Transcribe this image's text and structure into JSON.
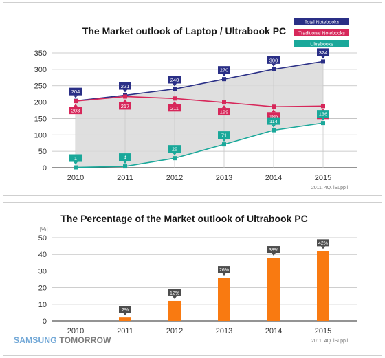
{
  "brand": {
    "samsung": "SAMSUNG",
    "tomorrow": "TOMORROW"
  },
  "colors": {
    "total": "#2a2f86",
    "traditional": "#d7275a",
    "ultrabook": "#1aa89a",
    "bar": "#f97a11",
    "area": "#d9d9d9",
    "label_dark": "#4d4d4d"
  },
  "chart_data": [
    {
      "type": "line",
      "title": "The Market outlook of Laptop / Ultrabook PC",
      "source": "2011. 4Q. iSuppli",
      "x": [
        "2010",
        "2011",
        "2012",
        "2013",
        "2014",
        "2015"
      ],
      "ylim": [
        0,
        350
      ],
      "yticks": [
        "0",
        "50",
        "100",
        "150",
        "200",
        "250",
        "300",
        "350"
      ],
      "grid": true,
      "legend_position": "top-right",
      "series": [
        {
          "name": "Total Notebooks",
          "values": [
            204,
            221,
            240,
            270,
            300,
            324
          ],
          "labels": [
            "204",
            "221",
            "240",
            "270",
            "300",
            "324"
          ]
        },
        {
          "name": "Traditional Notebooks",
          "values": [
            203,
            217,
            211,
            199,
            186,
            188
          ],
          "labels": [
            "203",
            "217",
            "211",
            "199",
            "186",
            "188"
          ]
        },
        {
          "name": "Ultrabooks",
          "values": [
            1,
            4,
            29,
            71,
            114,
            136
          ],
          "labels": [
            "1",
            "4",
            "29",
            "71",
            "114",
            "136"
          ]
        }
      ]
    },
    {
      "type": "bar",
      "title": "The Percentage of the Market outlook of Ultrabook PC",
      "unit": "[%]",
      "source": "2011. 4Q. iSuppli",
      "categories": [
        "2010",
        "2011",
        "2012",
        "2013",
        "2014",
        "2015"
      ],
      "values": [
        0,
        2,
        12,
        26,
        38,
        42
      ],
      "labels": [
        "",
        "2%",
        "12%",
        "26%",
        "38%",
        "42%"
      ],
      "ylim": [
        0,
        50
      ],
      "yticks": [
        "0",
        "10",
        "20",
        "30",
        "40",
        "50"
      ],
      "grid": true
    }
  ]
}
